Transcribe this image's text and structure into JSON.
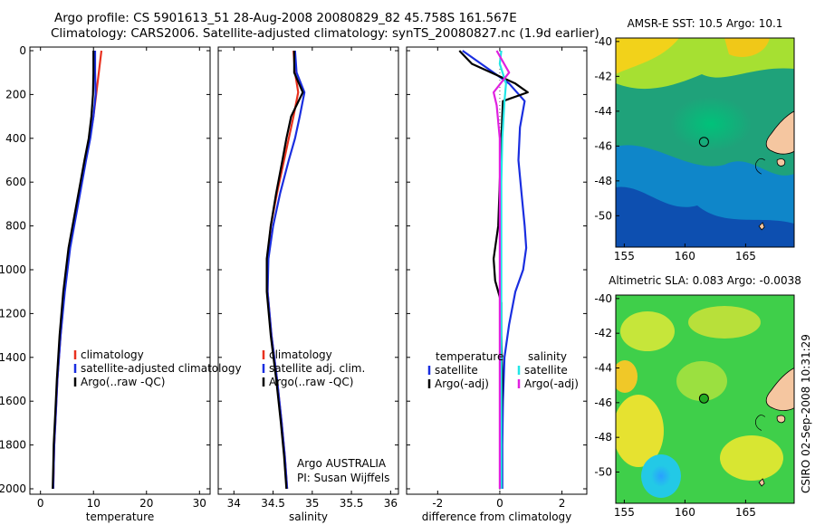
{
  "title_line1": "Argo profile: CS 5901613_51 28-Aug-2008 20080829_82 45.758S 161.567E",
  "title_line2": "Climatology: CARS2006. Satellite-adjusted climatology: synTS_20080827.nc (1.9d earlier)",
  "stamp": "CSIRO 02-Sep-2008 10:31:29",
  "attribution_line1": "Argo AUSTRALIA",
  "attribution_line2": "PI: Susan Wijffels",
  "colors": {
    "red": "#e8311f",
    "blue": "#1a2ee0",
    "black": "#000000",
    "cyan": "#22e6e6",
    "magenta": "#e020e0"
  },
  "chart_data": [
    {
      "type": "line",
      "xlabel": "temperature",
      "ylim": [
        2000,
        0
      ],
      "xlim": [
        -2,
        32
      ],
      "xticks": [
        "0",
        "10",
        "20",
        "30"
      ],
      "yticks": [
        "0",
        "200",
        "400",
        "600",
        "800",
        "1000",
        "1200",
        "1400",
        "1600",
        "1800",
        "2000"
      ],
      "legend": [
        "climatology",
        "satellite-adjusted climatology",
        "Argo(..raw -QC)"
      ],
      "series": [
        {
          "name": "climatology",
          "color": "red",
          "x": [
            11.5,
            11.0,
            10.5,
            10.0,
            9.3,
            8.5,
            7.0,
            5.5,
            4.5,
            3.8,
            3.2,
            2.9,
            2.6,
            2.5,
            2.4
          ],
          "y": [
            0,
            100,
            200,
            300,
            400,
            500,
            700,
            900,
            1100,
            1300,
            1500,
            1650,
            1800,
            1900,
            2000
          ]
        },
        {
          "name": "satellite-adjusted climatology",
          "color": "blue",
          "x": [
            10.3,
            10.3,
            10.4,
            10.0,
            9.4,
            8.6,
            7.1,
            5.6,
            4.6,
            3.8,
            3.2,
            2.9,
            2.6,
            2.5,
            2.4
          ],
          "y": [
            0,
            100,
            200,
            300,
            400,
            500,
            700,
            900,
            1100,
            1300,
            1500,
            1650,
            1800,
            1900,
            2000
          ]
        },
        {
          "name": "Argo(..raw -QC)",
          "color": "black",
          "x": [
            10.0,
            10.0,
            9.9,
            9.6,
            9.1,
            8.3,
            6.8,
            5.3,
            4.3,
            3.6,
            3.1,
            2.8,
            2.5,
            2.4,
            2.3
          ],
          "y": [
            0,
            100,
            200,
            300,
            400,
            500,
            700,
            900,
            1100,
            1300,
            1500,
            1650,
            1800,
            1900,
            2000
          ]
        }
      ]
    },
    {
      "type": "line",
      "xlabel": "salinity",
      "ylim": [
        2000,
        0
      ],
      "xlim": [
        33.8,
        36.1
      ],
      "xticks": [
        "34",
        "34.5",
        "35",
        "35.5",
        "36"
      ],
      "legend": [
        "climatology",
        "satellite adj. clim.",
        "Argo(..raw -QC)"
      ],
      "series": [
        {
          "name": "climatology",
          "color": "red",
          "x": [
            34.76,
            34.78,
            34.82,
            34.76,
            34.7,
            34.64,
            34.55,
            34.47,
            34.43,
            34.43,
            34.48,
            34.55,
            34.61,
            34.65,
            34.68
          ],
          "y": [
            0,
            100,
            190,
            300,
            400,
            500,
            650,
            800,
            950,
            1100,
            1300,
            1500,
            1700,
            1850,
            2000
          ]
        },
        {
          "name": "satellite adj. clim.",
          "color": "blue",
          "x": [
            34.78,
            34.8,
            34.9,
            34.84,
            34.78,
            34.7,
            34.59,
            34.5,
            34.44,
            34.43,
            34.48,
            34.55,
            34.61,
            34.65,
            34.68
          ],
          "y": [
            0,
            100,
            190,
            300,
            400,
            500,
            650,
            800,
            950,
            1100,
            1300,
            1500,
            1700,
            1850,
            2000
          ]
        },
        {
          "name": "Argo(..raw -QC)",
          "color": "black",
          "x": [
            34.77,
            34.77,
            34.88,
            34.73,
            34.67,
            34.62,
            34.54,
            34.47,
            34.42,
            34.42,
            34.47,
            34.54,
            34.6,
            34.64,
            34.67
          ],
          "y": [
            0,
            100,
            190,
            300,
            400,
            500,
            650,
            800,
            950,
            1100,
            1300,
            1500,
            1700,
            1850,
            2000
          ]
        }
      ]
    },
    {
      "type": "line",
      "xlabel": "difference from climatology",
      "ylim": [
        2000,
        0
      ],
      "xlim": [
        -3.0,
        2.8
      ],
      "xticks": [
        "-2",
        "0",
        "2"
      ],
      "legend_left_title": "temperature",
      "legend_right_title": "salinity",
      "legend": [
        "satellite",
        "Argo(-adj)",
        "satellite",
        "Argo(-adj)"
      ],
      "series": [
        {
          "name": "satellite",
          "group": "temperature",
          "color": "blue",
          "x": [
            -1.2,
            -0.6,
            0.3,
            0.8,
            0.65,
            0.6,
            0.7,
            0.8,
            0.85,
            0.75,
            0.5,
            0.3,
            0.15,
            0.1,
            0.08,
            0.08
          ],
          "y": [
            0,
            60,
            150,
            230,
            350,
            500,
            650,
            800,
            900,
            1000,
            1100,
            1250,
            1400,
            1600,
            1800,
            2000
          ]
        },
        {
          "name": "Argo(-adj)",
          "group": "temperature",
          "color": "black",
          "x": [
            -1.3,
            -0.9,
            0.5,
            0.9,
            0.1,
            0.05,
            0.0,
            -0.05,
            -0.2,
            -0.15,
            0.05,
            0.05,
            0.08,
            0.05,
            0.05,
            0.05
          ],
          "y": [
            0,
            60,
            150,
            190,
            230,
            400,
            600,
            800,
            950,
            1050,
            1150,
            1300,
            1500,
            1700,
            1850,
            2000
          ]
        },
        {
          "name": "satellite",
          "group": "salinity",
          "color": "cyan",
          "x": [
            0.05,
            0.0,
            0.2,
            0.15,
            0.08,
            0.05,
            0.05,
            0.05,
            0.05,
            0.05,
            0.05,
            0.05
          ],
          "y": [
            0,
            60,
            150,
            230,
            400,
            600,
            800,
            1000,
            1200,
            1400,
            1700,
            2000
          ]
        },
        {
          "name": "Argo(-adj)",
          "group": "salinity",
          "color": "magenta",
          "x": [
            -0.1,
            0.3,
            -0.2,
            -0.1,
            0.0,
            0.0,
            0.0,
            0.0,
            0.0,
            0.0
          ],
          "y": [
            0,
            100,
            190,
            250,
            400,
            700,
            1000,
            1400,
            1700,
            2000
          ]
        }
      ]
    },
    {
      "type": "heatmap",
      "title": "AMSR-E SST: 10.5 Argo: 10.1",
      "xlim": [
        154.3,
        169
      ],
      "ylim": [
        -51.8,
        -39.8
      ],
      "xticks": [
        "155",
        "160",
        "165"
      ],
      "yticks": [
        "-40",
        "-42",
        "-44",
        "-46",
        "-48",
        "-50"
      ],
      "argo_position": {
        "lon": 161.567,
        "lat": -45.758
      }
    },
    {
      "type": "heatmap",
      "title": "Altimetric SLA: 0.083 Argo: -0.0038",
      "xlim": [
        154.3,
        169
      ],
      "ylim": [
        -51.8,
        -39.8
      ],
      "xticks": [
        "155",
        "160",
        "165"
      ],
      "yticks": [
        "-40",
        "-42",
        "-44",
        "-46",
        "-48",
        "-50"
      ],
      "argo_position": {
        "lon": 161.567,
        "lat": -45.758
      }
    }
  ]
}
